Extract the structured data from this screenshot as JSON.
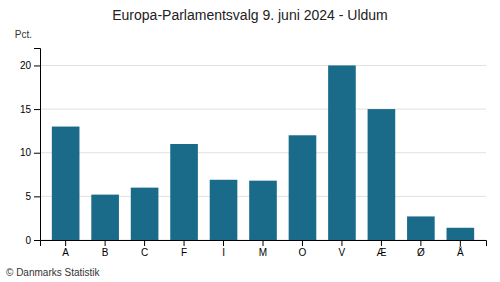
{
  "chart_data": {
    "type": "bar",
    "title": "Europa-Parlamentsvalg 9. juni 2024 - Uldum",
    "categories": [
      "A",
      "B",
      "C",
      "F",
      "I",
      "M",
      "O",
      "V",
      "Æ",
      "Ø",
      "Å"
    ],
    "values": [
      13.0,
      5.2,
      6.0,
      11.0,
      6.9,
      6.8,
      12.0,
      20.0,
      15.0,
      2.7,
      1.4
    ],
    "color": "#1a6b8a",
    "ylabel": "Pct.",
    "footer": "© Danmarks Statistik",
    "ylim": [
      0,
      22
    ],
    "yticks": [
      0,
      5,
      10,
      15,
      20
    ],
    "grid": true
  }
}
